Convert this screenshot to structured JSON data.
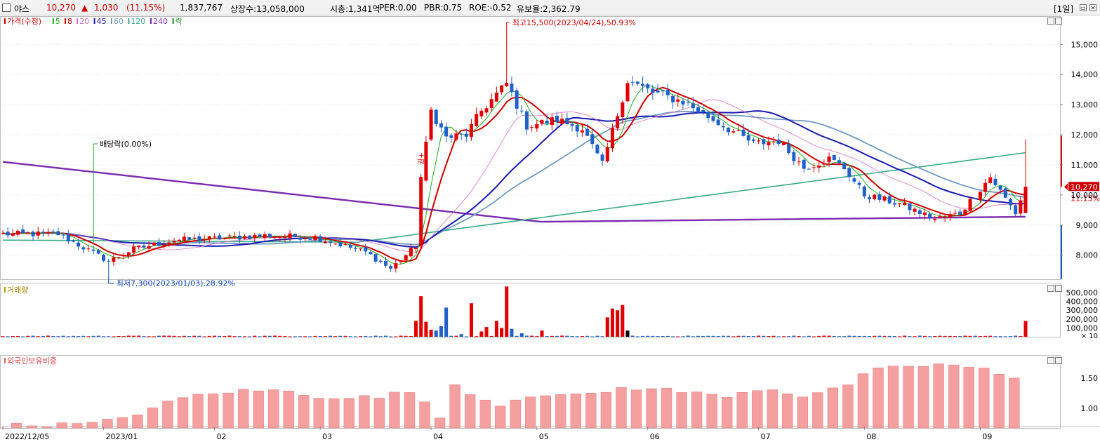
{
  "header": {
    "stock_name": "야스",
    "price": "10,270",
    "change_arrow": "▲",
    "change": "1,030",
    "change_pct": "(11.15%)",
    "volume": "1,837,767",
    "listed_shares": "상장수:13,058,000",
    "market_cap": "시총:1,341억",
    "per": "PER:0.00",
    "pbr": "PBR:0.75",
    "roe": "ROE:-0.52",
    "float_ratio": "유보율:2,362.79",
    "period_label": "[1일]",
    "min_icon": "window-minimize-icon",
    "close_icon": "window-close-icon"
  },
  "price_panel": {
    "legend": [
      {
        "label": "가격(수정)",
        "color": "#cc0000"
      },
      {
        "label": "5",
        "color": "#22aa22"
      },
      {
        "label": "8",
        "color": "#cc0000"
      },
      {
        "label": "20",
        "color": "#d070c0"
      },
      {
        "label": "45",
        "color": "#1a1ab0"
      },
      {
        "label": "60",
        "color": "#6f9ac0"
      },
      {
        "label": "120",
        "color": "#3aaa88"
      },
      {
        "label": "240",
        "color": "#7a2cb0"
      },
      {
        "label": "락",
        "color": "#228822"
      }
    ],
    "annotation_high": "최고15,500(2023/04/24),50.93%",
    "annotation_low": "최저7,300(2023/01/03),28.92%",
    "annotation_dividend": "배당락(0.00%)",
    "annotation_event": "권+",
    "current_price_label": "10,270",
    "current_pct_label": "11.15%",
    "y_ticks": [
      "15,000",
      "14,000",
      "13,000",
      "12,000",
      "11,000",
      "10,000",
      "9,000",
      "8,000"
    ],
    "y_tick_values": [
      15000,
      14000,
      13000,
      12000,
      11000,
      10000,
      9000,
      8000
    ]
  },
  "volume_panel": {
    "legend": "거래량",
    "y_ticks": [
      "500,000",
      "400,000",
      "300,000",
      "200,000",
      "100,000"
    ],
    "y_tick_values": [
      500000,
      400000,
      300000,
      200000,
      100000
    ],
    "unit_label": "× 10"
  },
  "foreign_panel": {
    "legend": "외국인보유비중",
    "y_ticks": [
      "1.50",
      "1.00"
    ],
    "y_tick_values": [
      1.5,
      1.0
    ]
  },
  "x_axis": {
    "labels": [
      "2022/12/05",
      "2023/01",
      "02",
      "03",
      "04",
      "05",
      "06",
      "07",
      "08",
      "09"
    ]
  },
  "colors": {
    "up": "#e00000",
    "down": "#2060c8",
    "ma5": "#22aa22",
    "ma8": "#cc0000",
    "ma20": "#d070c0",
    "ma45": "#1a1ab0",
    "ma60": "#6f9ac0",
    "ma120": "#3aaa88",
    "ma240": "#7a2cb0",
    "foreign_bar": "#f4a0a0"
  },
  "chart_data": [
    {
      "type": "candlestick",
      "ylim": [
        7200,
        15800
      ],
      "x_start": "2022/12/05",
      "x_end": "2023/09/14",
      "anchor_closes": [
        [
          "2022/12/05",
          8700
        ],
        [
          "2022/12/20",
          8700
        ],
        [
          "2023/01/03",
          7800
        ],
        [
          "2023/01/10",
          8200
        ],
        [
          "2023/01/20",
          8500
        ],
        [
          "2023/02/01",
          8550
        ],
        [
          "2023/02/15",
          8650
        ],
        [
          "2023/03/01",
          8600
        ],
        [
          "2023/03/15",
          8100
        ],
        [
          "2023/03/22",
          7550
        ],
        [
          "2023/03/29",
          8300
        ],
        [
          "2023/03/30",
          10500
        ],
        [
          "2023/04/03",
          12800
        ],
        [
          "2023/04/06",
          11900
        ],
        [
          "2023/04/12",
          12000
        ],
        [
          "2023/04/17",
          12800
        ],
        [
          "2023/04/24",
          13700
        ],
        [
          "2023/04/28",
          12300
        ],
        [
          "2023/05/08",
          12500
        ],
        [
          "2023/05/15",
          12200
        ],
        [
          "2023/05/19",
          11000
        ],
        [
          "2023/05/26",
          13800
        ],
        [
          "2023/06/02",
          13400
        ],
        [
          "2023/06/12",
          13100
        ],
        [
          "2023/06/20",
          12500
        ],
        [
          "2023/06/30",
          11700
        ],
        [
          "2023/07/07",
          11800
        ],
        [
          "2023/07/14",
          10900
        ],
        [
          "2023/07/21",
          11200
        ],
        [
          "2023/07/26",
          10900
        ],
        [
          "2023/08/01",
          10000
        ],
        [
          "2023/08/10",
          9700
        ],
        [
          "2023/08/21",
          9200
        ],
        [
          "2023/08/28",
          9400
        ],
        [
          "2023/09/05",
          10600
        ],
        [
          "2023/09/12",
          9400
        ],
        [
          "2023/09/14",
          10270
        ]
      ],
      "highest": {
        "date": "2023/04/24",
        "value": 15500
      },
      "lowest": {
        "date": "2023/01/03",
        "value": 7300
      },
      "last": {
        "open": 9400,
        "high": 11850,
        "low": 9500,
        "close": 10270
      }
    },
    {
      "type": "bar",
      "name_ref": "거래량",
      "ylim": [
        0,
        580000
      ],
      "spikes": [
        [
          "2023/03/29",
          180000
        ],
        [
          "2023/03/30",
          460000
        ],
        [
          "2023/03/31",
          170000
        ],
        [
          "2023/04/03",
          80000
        ],
        [
          "2023/04/04",
          70000
        ],
        [
          "2023/04/05",
          120000
        ],
        [
          "2023/04/06",
          330000
        ],
        [
          "2023/04/11",
          30000
        ],
        [
          "2023/04/13",
          380000
        ],
        [
          "2023/04/17",
          60000
        ],
        [
          "2023/04/18",
          110000
        ],
        [
          "2023/04/20",
          180000
        ],
        [
          "2023/04/21",
          100000
        ],
        [
          "2023/04/24",
          570000
        ],
        [
          "2023/04/25",
          90000
        ],
        [
          "2023/04/27",
          40000
        ],
        [
          "2023/05/03",
          70000
        ],
        [
          "2023/05/22",
          220000
        ],
        [
          "2023/05/23",
          320000
        ],
        [
          "2023/05/24",
          300000
        ],
        [
          "2023/05/25",
          360000
        ],
        [
          "2023/05/26",
          70000
        ],
        [
          "2023/09/14",
          180000
        ]
      ]
    },
    {
      "type": "bar",
      "name_ref": "외국인보유비중",
      "ylim": [
        0.68,
        1.82
      ],
      "anchors": [
        [
          "2022/12/05",
          0.72
        ],
        [
          "2022/12/30",
          0.75
        ],
        [
          "2023/01/10",
          0.9
        ],
        [
          "2023/01/25",
          1.2
        ],
        [
          "2023/02/06",
          1.28
        ],
        [
          "2023/02/20",
          1.3
        ],
        [
          "2023/03/02",
          1.2
        ],
        [
          "2023/03/20",
          1.18
        ],
        [
          "2023/03/28",
          1.3
        ],
        [
          "2023/04/05",
          0.85
        ],
        [
          "2023/04/10",
          1.4
        ],
        [
          "2023/04/20",
          1.05
        ],
        [
          "2023/05/02",
          1.25
        ],
        [
          "2023/05/15",
          1.2
        ],
        [
          "2023/05/26",
          1.35
        ],
        [
          "2023/06/08",
          1.3
        ],
        [
          "2023/06/22",
          1.2
        ],
        [
          "2023/07/05",
          1.35
        ],
        [
          "2023/07/14",
          1.2
        ],
        [
          "2023/07/25",
          1.32
        ],
        [
          "2023/08/03",
          1.62
        ],
        [
          "2023/08/14",
          1.7
        ],
        [
          "2023/08/25",
          1.72
        ],
        [
          "2023/09/05",
          1.62
        ],
        [
          "2023/09/14",
          1.42
        ]
      ]
    }
  ]
}
